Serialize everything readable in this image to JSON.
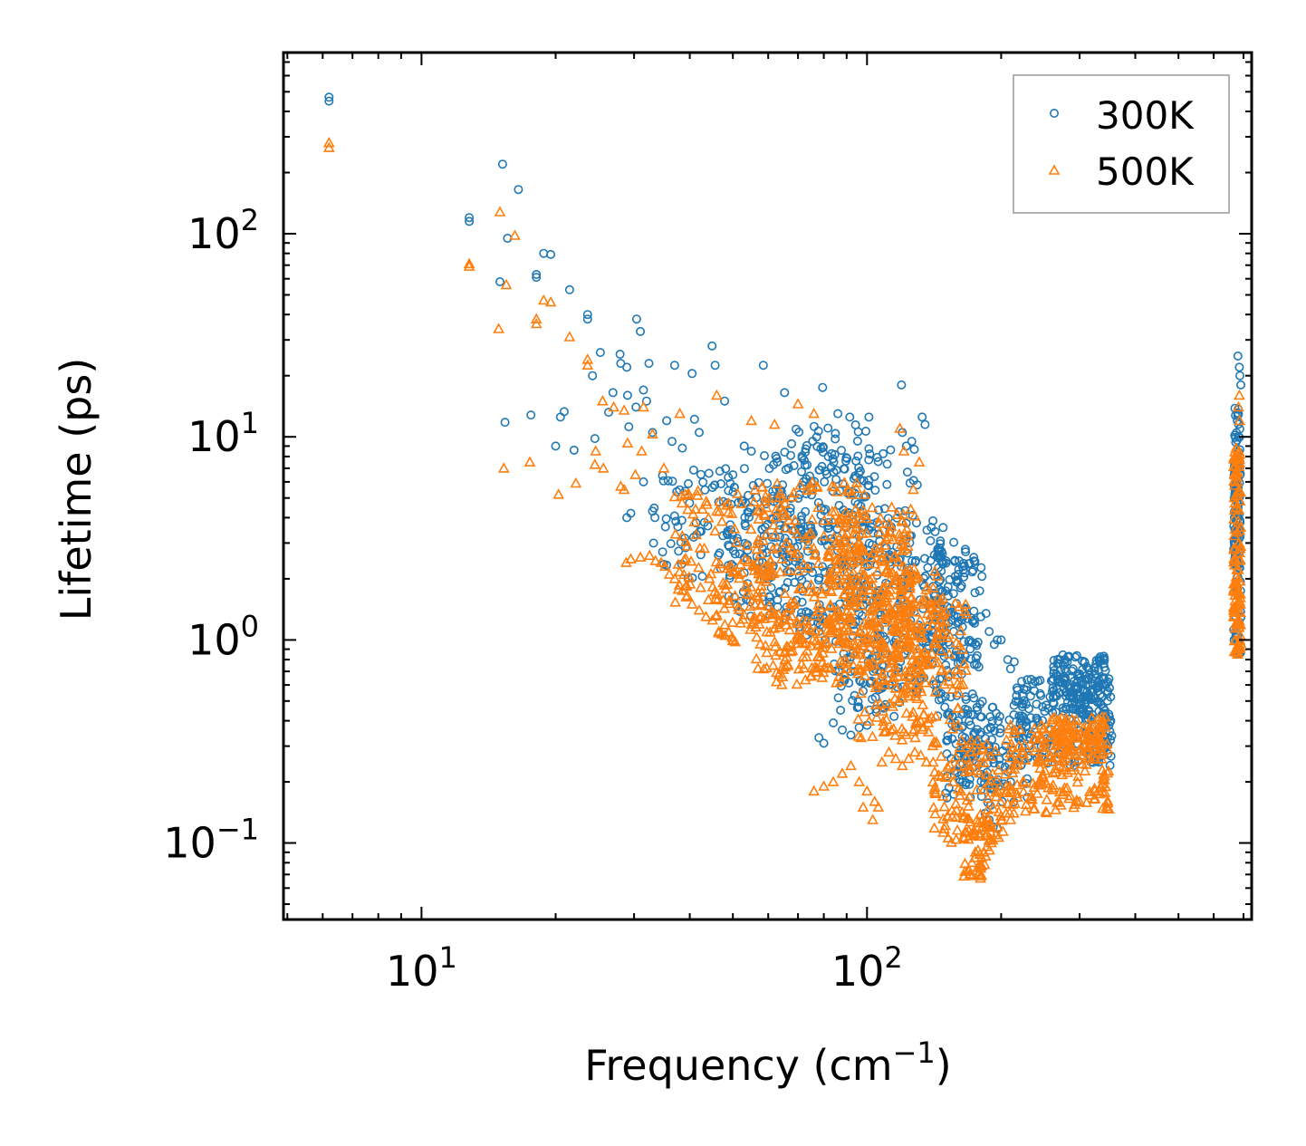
{
  "chart_data": {
    "type": "scatter",
    "title": "",
    "xlabel": "Frequency (cm",
    "xlabel_sup": "−1",
    "xlabel_close": ")",
    "ylabel": "Lifetime (ps)",
    "xscale": "log",
    "yscale": "log",
    "xlim": [
      4.9,
      730
    ],
    "ylim": [
      0.042,
      780
    ],
    "x_tick_labels": [
      {
        "value": 10,
        "base": "10",
        "exp": "1"
      },
      {
        "value": 100,
        "base": "10",
        "exp": "2"
      }
    ],
    "y_tick_labels": [
      {
        "value": 0.1,
        "base": "10",
        "exp": "−1"
      },
      {
        "value": 1,
        "base": "10",
        "exp": "0"
      },
      {
        "value": 10,
        "base": "10",
        "exp": "1"
      },
      {
        "value": 100,
        "base": "10",
        "exp": "2"
      }
    ],
    "legend_position": "top-right",
    "series": [
      {
        "name": "300K",
        "marker": "circle",
        "color": "#1f77b4",
        "points": [
          [
            6.2,
            470
          ],
          [
            6.2,
            450
          ],
          [
            12.8,
            120
          ],
          [
            12.8,
            115
          ],
          [
            15.2,
            220
          ],
          [
            15.6,
            95
          ],
          [
            16.5,
            165
          ],
          [
            15.0,
            58
          ],
          [
            18.1,
            63
          ],
          [
            18.1,
            61
          ],
          [
            18.8,
            80
          ],
          [
            19.5,
            79
          ],
          [
            21.5,
            53
          ],
          [
            23.6,
            40
          ],
          [
            23.6,
            38
          ],
          [
            25.2,
            26
          ],
          [
            24.2,
            20
          ],
          [
            27.9,
            25.5
          ],
          [
            28.0,
            23
          ],
          [
            28.9,
            22
          ],
          [
            30.4,
            38
          ],
          [
            31.0,
            33
          ],
          [
            32.4,
            23
          ],
          [
            31.5,
            17
          ],
          [
            32.0,
            15
          ],
          [
            37.0,
            22.5
          ],
          [
            40.5,
            20.5
          ],
          [
            44.9,
            28
          ],
          [
            45.6,
            22.5
          ],
          [
            47.9,
            15
          ],
          [
            15.4,
            11.8
          ],
          [
            17.6,
            12.8
          ],
          [
            20.5,
            12.5
          ],
          [
            20.9,
            13.3
          ],
          [
            24.5,
            9.8
          ],
          [
            26.3,
            13.2
          ],
          [
            26.9,
            16.5
          ],
          [
            29.0,
            16
          ],
          [
            30.3,
            14
          ],
          [
            20.0,
            9.0
          ],
          [
            22.0,
            8.6
          ],
          [
            29.2,
            11.2
          ],
          [
            33.0,
            10.5
          ],
          [
            35.5,
            12.0
          ],
          [
            38.5,
            8.8
          ],
          [
            41.0,
            12.2
          ],
          [
            42.0,
            10.5
          ],
          [
            36.5,
            9.5
          ],
          [
            31.5,
            6.0
          ],
          [
            29.5,
            4.2
          ],
          [
            28.9,
            4.0
          ],
          [
            33.0,
            4.3
          ],
          [
            58.5,
            22.5
          ],
          [
            65.3,
            16.5
          ],
          [
            53.0,
            9.0
          ],
          [
            55.0,
            8.5
          ],
          [
            50.0,
            6.5
          ],
          [
            79.5,
            17.5
          ],
          [
            119.5,
            18
          ],
          [
            86.0,
            13
          ],
          [
            91.5,
            12.5
          ],
          [
            101,
            12.5
          ],
          [
            133,
            12.5
          ],
          [
            135,
            11.5
          ],
          [
            120,
            10.5
          ],
          [
            122.5,
            9.0
          ],
          [
            126,
            9.5
          ],
          [
            173,
            2.2
          ],
          [
            185,
            1.35
          ],
          [
            196,
            1.0
          ],
          [
            200,
            1.0
          ],
          [
            214,
            0.78
          ],
          [
            217,
            0.58
          ],
          [
            188,
            1.1
          ],
          [
            180,
            1.3
          ],
          [
            193,
            0.95
          ],
          [
            207,
            0.8
          ],
          [
            210,
            0.72
          ],
          [
            78,
            0.33
          ],
          [
            80,
            0.31
          ],
          [
            84,
            0.39
          ],
          [
            88,
            0.36
          ],
          [
            92,
            0.34
          ],
          [
            96,
            0.37
          ],
          [
            100,
            0.38
          ],
          [
            105,
            0.44
          ],
          [
            110,
            0.48
          ],
          [
            115,
            0.42
          ],
          [
            104,
            0.72
          ],
          [
            108,
            0.66
          ],
          [
            112,
            0.6
          ],
          [
            89,
            0.63
          ],
          [
            94,
            0.7
          ],
          [
            98,
            0.56
          ],
          [
            184,
            0.14
          ],
          [
            188,
            0.13
          ],
          [
            192,
            0.12
          ],
          [
            196,
            0.118
          ],
          [
            201,
            0.16
          ],
          [
            210,
            0.2
          ],
          [
            232,
            0.33
          ],
          [
            236,
            0.38
          ],
          [
            255,
            0.46
          ],
          [
            262,
            0.52
          ],
          [
            290,
            0.72
          ],
          [
            300,
            0.68
          ],
          [
            310,
            0.6
          ],
          [
            320,
            0.57
          ],
          [
            330,
            0.62
          ],
          [
            340,
            0.64
          ],
          [
            345,
            0.61
          ],
          [
            350,
            0.58
          ],
          [
            278,
            0.8
          ],
          [
            284,
            0.83
          ],
          [
            680,
            25
          ],
          [
            685,
            22
          ],
          [
            687,
            20
          ],
          [
            690,
            18
          ],
          [
            678,
            12
          ],
          [
            682,
            10
          ],
          [
            674,
            7.5
          ],
          [
            670,
            5.5
          ],
          [
            668,
            4.0
          ],
          [
            672,
            3.0
          ],
          [
            676,
            2.5
          ],
          [
            679,
            1.8
          ],
          [
            684,
            1.5
          ]
        ],
        "clusters": [
          {
            "x": [
              33,
              60
            ],
            "y": [
              2.0,
              7.0
            ],
            "n": 90
          },
          {
            "x": [
              48,
              72
            ],
            "y": [
              1.3,
              5.5
            ],
            "n": 80
          },
          {
            "x": [
              58,
              100
            ],
            "y": [
              1.2,
              11.5
            ],
            "n": 190
          },
          {
            "x": [
              70,
              130
            ],
            "y": [
              1.0,
              9.5
            ],
            "n": 170
          },
          {
            "x": [
              100,
              150
            ],
            "y": [
              0.55,
              4.0
            ],
            "n": 130
          },
          {
            "x": [
              130,
              175
            ],
            "y": [
              0.75,
              3.2
            ],
            "n": 100
          },
          {
            "x": [
              140,
              182
            ],
            "y": [
              0.42,
              2.6
            ],
            "n": 70
          },
          {
            "x": [
              84,
              120
            ],
            "y": [
              0.45,
              1.1
            ],
            "n": 60
          },
          {
            "x": [
              150,
              230
            ],
            "y": [
              0.15,
              0.5
            ],
            "n": 110
          },
          {
            "x": [
              160,
              200
            ],
            "y": [
              0.18,
              0.42
            ],
            "n": 50
          },
          {
            "x": [
              215,
              355
            ],
            "y": [
              0.24,
              0.65
            ],
            "n": 200
          },
          {
            "x": [
              260,
              345
            ],
            "y": [
              0.4,
              0.85
            ],
            "n": 130
          },
          {
            "x": [
              665,
              690
            ],
            "y": [
              0.85,
              14
            ],
            "n": 90
          },
          {
            "x": [
              667,
              688
            ],
            "y": [
              2.0,
              8.0
            ],
            "n": 60
          }
        ]
      },
      {
        "name": "500K",
        "marker": "triangle",
        "color": "#ff7f0e",
        "points": [
          [
            6.2,
            280
          ],
          [
            6.2,
            265
          ],
          [
            12.8,
            71
          ],
          [
            12.8,
            69
          ],
          [
            15.0,
            128
          ],
          [
            16.2,
            98
          ],
          [
            15.5,
            56
          ],
          [
            14.9,
            34
          ],
          [
            18.1,
            38
          ],
          [
            18.1,
            36
          ],
          [
            18.8,
            47
          ],
          [
            19.5,
            46
          ],
          [
            21.5,
            31
          ],
          [
            23.6,
            24
          ],
          [
            23.6,
            22.5
          ],
          [
            25.5,
            15
          ],
          [
            27.0,
            14
          ],
          [
            28.5,
            13.5
          ],
          [
            31.5,
            14
          ],
          [
            38.0,
            13
          ],
          [
            46.0,
            16
          ],
          [
            15.3,
            7.0
          ],
          [
            17.5,
            7.5
          ],
          [
            20.3,
            5.2
          ],
          [
            22.2,
            5.9
          ],
          [
            24.5,
            7.3
          ],
          [
            25.6,
            7.0
          ],
          [
            24.6,
            8.5
          ],
          [
            28.0,
            5.7
          ],
          [
            28.5,
            5.5
          ],
          [
            30.2,
            6.5
          ],
          [
            29.0,
            9.3
          ],
          [
            31.2,
            8.5
          ],
          [
            33.0,
            10.3
          ],
          [
            35.0,
            7.0
          ],
          [
            28.8,
            2.4
          ],
          [
            29.5,
            2.5
          ],
          [
            31.0,
            2.55
          ],
          [
            32.5,
            2.6
          ],
          [
            33.5,
            2.45
          ],
          [
            34.5,
            2.4
          ],
          [
            35.2,
            2.3
          ],
          [
            36.0,
            2.1
          ],
          [
            37.0,
            2.0
          ],
          [
            38.5,
            1.75
          ],
          [
            39.5,
            1.65
          ],
          [
            40.5,
            1.5
          ],
          [
            42.0,
            1.4
          ],
          [
            43.5,
            1.3
          ],
          [
            45.0,
            1.25
          ],
          [
            46.5,
            1.1
          ],
          [
            48.0,
            1.05
          ],
          [
            50.0,
            1.0
          ],
          [
            55.0,
            12
          ],
          [
            62.0,
            11.5
          ],
          [
            70.0,
            14.5
          ],
          [
            76.0,
            13
          ],
          [
            118.5,
            11
          ],
          [
            121,
            8.5
          ],
          [
            127,
            5.5
          ],
          [
            131,
            7.5
          ],
          [
            76,
            0.18
          ],
          [
            80,
            0.19
          ],
          [
            84,
            0.2
          ],
          [
            88,
            0.22
          ],
          [
            92,
            0.24
          ],
          [
            96,
            0.2
          ],
          [
            100,
            0.18
          ],
          [
            104,
            0.16
          ],
          [
            108,
            0.25
          ],
          [
            112,
            0.28
          ],
          [
            116,
            0.26
          ],
          [
            120,
            0.24
          ],
          [
            124,
            0.26
          ],
          [
            128,
            0.28
          ],
          [
            132,
            0.27
          ],
          [
            136,
            0.25
          ],
          [
            103,
            0.13
          ],
          [
            98,
            0.15
          ],
          [
            106,
            0.15
          ],
          [
            170,
            0.07
          ],
          [
            172,
            0.08
          ],
          [
            175,
            0.09
          ],
          [
            178,
            0.07
          ],
          [
            180,
            0.075
          ],
          [
            183,
            0.09
          ],
          [
            186,
            0.11
          ],
          [
            190,
            0.1
          ],
          [
            196,
            0.12
          ],
          [
            200,
            0.13
          ],
          [
            205,
            0.14
          ],
          [
            210,
            0.13
          ],
          [
            685,
            16
          ],
          [
            682,
            14
          ],
          [
            686,
            12
          ],
          [
            680,
            8
          ],
          [
            684,
            7.5
          ],
          [
            678,
            6
          ],
          [
            674,
            4.5
          ],
          [
            670,
            3.5
          ],
          [
            666,
            2.5
          ],
          [
            668,
            1.8
          ],
          [
            672,
            1.2
          ],
          [
            676,
            0.9
          ],
          [
            679,
            0.85
          ]
        ],
        "clusters": [
          {
            "x": [
              36,
              60
            ],
            "y": [
              1.5,
              5.5
            ],
            "n": 80
          },
          {
            "x": [
              45,
              62
            ],
            "y": [
              0.95,
              2.5
            ],
            "n": 60
          },
          {
            "x": [
              55,
              100
            ],
            "y": [
              0.65,
              6.0
            ],
            "n": 230
          },
          {
            "x": [
              62,
              90
            ],
            "y": [
              0.6,
              1.5
            ],
            "n": 70
          },
          {
            "x": [
              82,
              128
            ],
            "y": [
              0.9,
              4.5
            ],
            "n": 220
          },
          {
            "x": [
              100,
              150
            ],
            "y": [
              0.7,
              2.2
            ],
            "n": 130
          },
          {
            "x": [
              120,
              168
            ],
            "y": [
              0.35,
              1.6
            ],
            "n": 90
          },
          {
            "x": [
              95,
              135
            ],
            "y": [
              0.32,
              0.9
            ],
            "n": 80
          },
          {
            "x": [
              140,
              205
            ],
            "y": [
              0.1,
              0.32
            ],
            "n": 110
          },
          {
            "x": [
              165,
              190
            ],
            "y": [
              0.065,
              0.14
            ],
            "n": 50
          },
          {
            "x": [
              205,
              350
            ],
            "y": [
              0.14,
              0.38
            ],
            "n": 180
          },
          {
            "x": [
              250,
              345
            ],
            "y": [
              0.25,
              0.42
            ],
            "n": 100
          },
          {
            "x": [
              665,
              690
            ],
            "y": [
              0.85,
              9.0
            ],
            "n": 110
          }
        ]
      }
    ]
  }
}
